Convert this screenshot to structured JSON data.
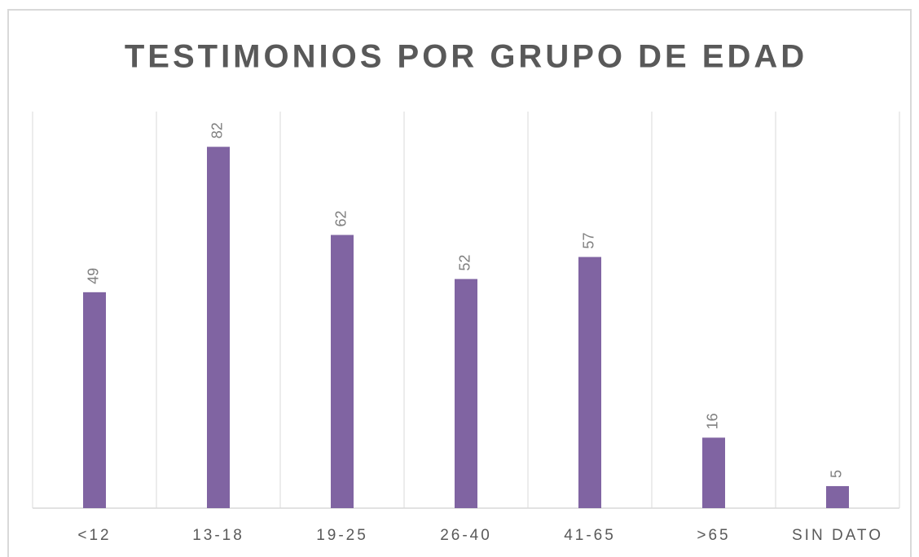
{
  "chart_data": {
    "type": "bar",
    "title": "TESTIMONIOS POR GRUPO DE EDAD",
    "categories": [
      "<12",
      "13-18",
      "19-25",
      "26-40",
      "41-65",
      ">65",
      "SIN DATO"
    ],
    "values": [
      49,
      82,
      62,
      52,
      57,
      16,
      5
    ],
    "color": "#8064a2",
    "ylim": [
      0,
      90
    ]
  }
}
